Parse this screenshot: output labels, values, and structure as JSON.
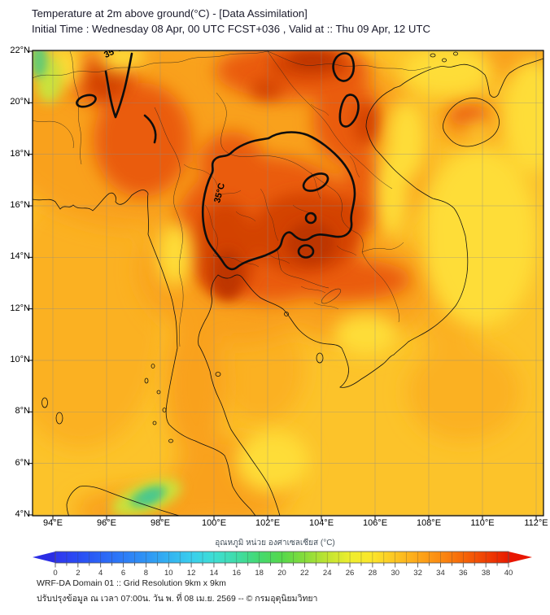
{
  "header": {
    "title": "Temperature at 2m above ground(°C) - [Data Assimilation]",
    "subtitle": "Initial Time : Wednesday 08 Apr, 00 UTC FCST+036 , Valid at :: Thu 09 Apr, 12 UTC"
  },
  "map": {
    "lat_ticks": [
      "22°N",
      "20°N",
      "18°N",
      "16°N",
      "14°N",
      "12°N",
      "10°N",
      "8°N",
      "6°N",
      "4°N"
    ],
    "lon_ticks": [
      "94°E",
      "96°E",
      "98°E",
      "100°E",
      "102°E",
      "104°E",
      "106°E",
      "108°E",
      "110°E",
      "112°E"
    ],
    "contour_labels": [
      {
        "text": "35°C"
      },
      {
        "text": "35°C"
      }
    ],
    "isotherm_level": "35°C"
  },
  "palette": {
    "sea": "#fcc32a",
    "sea_tint": "#fbb124",
    "land": "#f9a11c",
    "hot": "#ea5c0e",
    "hot_core": "#d34306",
    "hot_deep": "#bd3504",
    "warm_yellow": "#fedd37",
    "green_yellow": "#c9e23e",
    "green": "#66cb72",
    "teal": "#45c795",
    "outline": "#111111",
    "contour": "#0d0d0d",
    "grid": "#8a8a8a"
  },
  "colorbar": {
    "label": "อุณหภูมิ หน่วย องศาเซลเซียส (°C)",
    "min": 0,
    "max": 40,
    "ticks": [
      0,
      2,
      4,
      6,
      8,
      10,
      12,
      14,
      16,
      18,
      20,
      22,
      24,
      26,
      28,
      30,
      32,
      34,
      36,
      38,
      40
    ],
    "left_arrow_color": "#2b2de4",
    "right_arrow_color": "#e81600",
    "stops": [
      {
        "v": 0,
        "c": "#2f36ee"
      },
      {
        "v": 2,
        "c": "#2a4cf3"
      },
      {
        "v": 4,
        "c": "#2b64f6"
      },
      {
        "v": 6,
        "c": "#2d7cf7"
      },
      {
        "v": 8,
        "c": "#2f94f4"
      },
      {
        "v": 10,
        "c": "#33b2f1"
      },
      {
        "v": 12,
        "c": "#39ceee"
      },
      {
        "v": 14,
        "c": "#3eded4"
      },
      {
        "v": 16,
        "c": "#3fdca8"
      },
      {
        "v": 18,
        "c": "#44d970"
      },
      {
        "v": 20,
        "c": "#55d84b"
      },
      {
        "v": 22,
        "c": "#86dc3b"
      },
      {
        "v": 24,
        "c": "#c0e432"
      },
      {
        "v": 26,
        "c": "#eeee2e"
      },
      {
        "v": 28,
        "c": "#fce52b"
      },
      {
        "v": 30,
        "c": "#fcc522"
      },
      {
        "v": 32,
        "c": "#fda71a"
      },
      {
        "v": 34,
        "c": "#fb8a11"
      },
      {
        "v": 36,
        "c": "#f66708"
      },
      {
        "v": 38,
        "c": "#ef4104"
      },
      {
        "v": 40,
        "c": "#e81a00"
      }
    ]
  },
  "footer": {
    "line1": "WRF-DA Domain 01 :: Grid Resolution 9km x 9km",
    "line2": "ปรับปรุงข้อมูล ณ เวลา 07:00น. วัน พ. ที่ 08 เม.ย. 2569 -- © กรมอุตุนิยมวิทยา"
  },
  "chart_data": {
    "type": "heatmap",
    "title": "Temperature at 2m above ground(°C) - [Data Assimilation]",
    "units": "°C",
    "lon_range": [
      94,
      112
    ],
    "lat_range": [
      4,
      22
    ],
    "scale_min": 0,
    "scale_max": 40,
    "scale_tick_step": 2,
    "isotherm_contour_level": 35,
    "hot_regions": [
      "central Thailand",
      "northeast Thailand",
      "Laos",
      "northern Vietnam",
      "northern Myanmar"
    ],
    "cool_regions": [
      "northern Sumatra",
      "far northwest corner"
    ]
  }
}
